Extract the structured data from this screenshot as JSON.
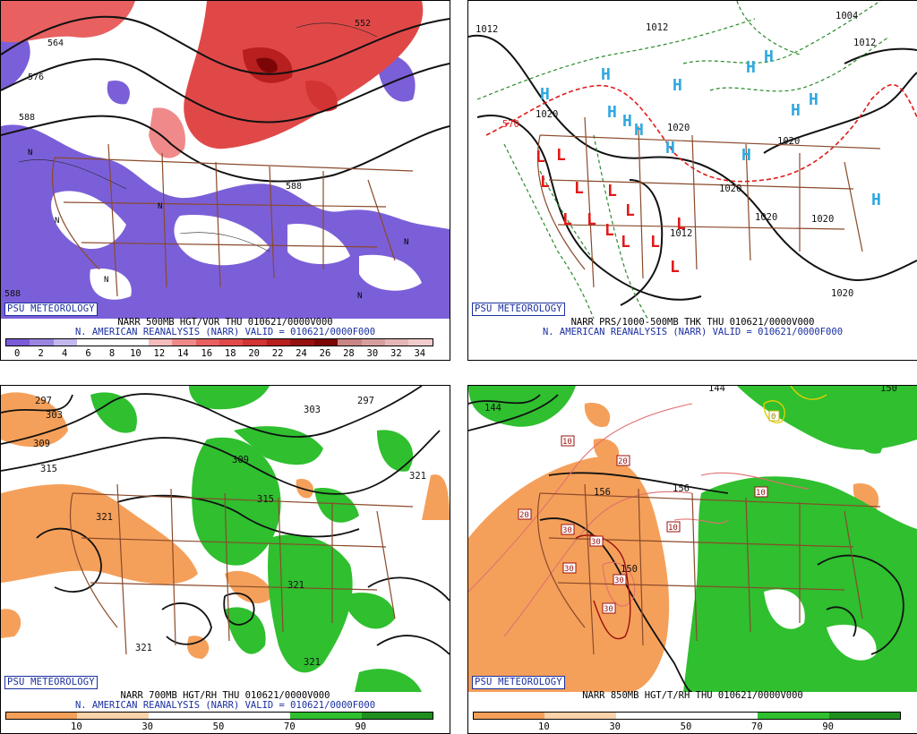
{
  "badge": "PSU METEOROLOGY",
  "panels": {
    "p1": {
      "line1": "NARR 500MB HGT/VOR THU 010621/0000V000",
      "line2": "N. AMERICAN REANALYSIS (NARR) VALID = 010621/0000F000",
      "scale_labels": [
        "0",
        "2",
        "4",
        "6",
        "8",
        "10",
        "12",
        "14",
        "16",
        "18",
        "20",
        "22",
        "24",
        "26",
        "28",
        "30",
        "32",
        "34"
      ],
      "scale_colors": [
        "#7a5cd6",
        "#9a85e0",
        "#c3b8ee",
        "#ffffff",
        "#ffffff",
        "#ffffff",
        "#f6bcbc",
        "#f08a8a",
        "#e86060",
        "#e04a4a",
        "#d23333",
        "#b81f1f",
        "#961010",
        "#7c0606",
        "#c98484",
        "#d79e9e",
        "#e6b6b6",
        "#f2cccc"
      ],
      "contours": [
        "564",
        "576",
        "588",
        "588",
        "552",
        "588"
      ],
      "symbol": "N"
    },
    "p2": {
      "line1": "NARR PRS/1000-500MB THK THU 010621/0000V000",
      "line2": "N. AMERICAN REANALYSIS (NARR) VALID = 010621/0000F000",
      "contours": [
        "1012",
        "1012",
        "1020",
        "1020",
        "1020",
        "1020",
        "1020",
        "1020",
        "1012",
        "1020",
        "570",
        "1004",
        "1012"
      ],
      "high": "H",
      "low": "L"
    },
    "p3": {
      "line1": "NARR 700MB HGT/RH THU 010621/0000V000",
      "line2": "N. AMERICAN REANALYSIS (NARR) VALID = 010621/0000F000",
      "scale_labels": [
        "10",
        "30",
        "50",
        "70",
        "90"
      ],
      "contours": [
        "297",
        "303",
        "309",
        "315",
        "321",
        "309",
        "315",
        "321",
        "321",
        "321",
        "321",
        "303",
        "297"
      ]
    },
    "p4": {
      "line1": "NARR 850MB HGT/T/RH THU 010621/0000V000",
      "scale_labels": [
        "10",
        "30",
        "50",
        "70",
        "90"
      ],
      "contours": [
        "144",
        "156",
        "156",
        "150",
        "144",
        "150"
      ],
      "temps": [
        "10",
        "20",
        "20",
        "30",
        "30",
        "30",
        "30",
        "30",
        "10",
        "10",
        "0"
      ]
    }
  },
  "colors": {
    "vort_purple": "#7b5fd8",
    "vort_red": "#e04848",
    "rh_green": "#2fbf2f",
    "rh_orange": "#f5a05a",
    "states": "#8a4a2a",
    "high_blue": "#2ea8e0",
    "low_red": "#e01a1a",
    "thick_green": "#2a8a2a"
  }
}
